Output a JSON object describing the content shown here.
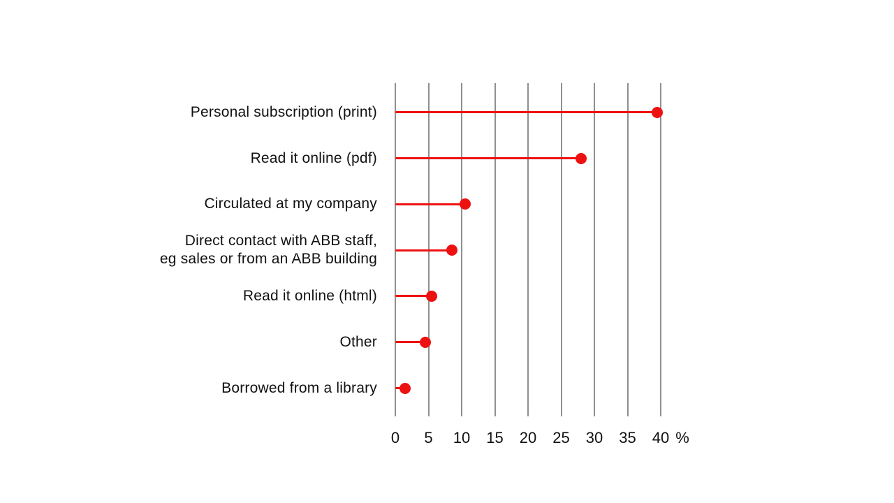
{
  "chart_data": {
    "type": "bar",
    "variant": "lollipop",
    "orientation": "horizontal",
    "title": "",
    "categories": [
      "Personal subscription (print)",
      "Read it online (pdf)",
      "Circulated at my company",
      "Direct contact with ABB staff,\neg sales or from an ABB building",
      "Read it online (html)",
      "Other",
      "Borrowed from a library"
    ],
    "values": [
      39.5,
      28,
      10.5,
      8.5,
      5.5,
      4.5,
      1.5
    ],
    "x_ticks": [
      0,
      5,
      10,
      15,
      20,
      25,
      30,
      35,
      40
    ],
    "xlabel": "%",
    "xlim": [
      0,
      40
    ],
    "grid": "vertical",
    "legend": "none",
    "colors": {
      "accent": "#ee1111",
      "gridline": "#8f8f8f",
      "text": "#111111",
      "background": "#ffffff"
    }
  }
}
